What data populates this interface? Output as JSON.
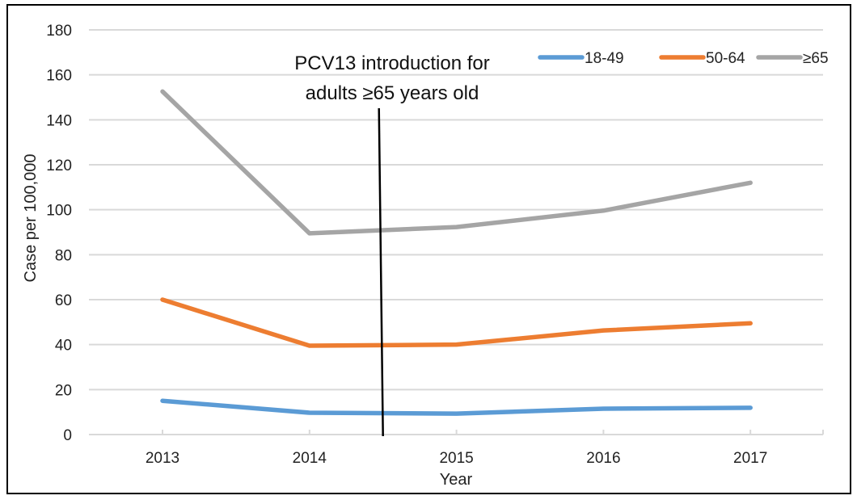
{
  "chart_data": {
    "type": "line",
    "title": "",
    "xlabel": "Year",
    "ylabel": "Case per 100,000",
    "categories": [
      "2013",
      "2014",
      "2015",
      "2016",
      "2017"
    ],
    "ylim": [
      0,
      180
    ],
    "yticks": [
      0,
      20,
      40,
      60,
      80,
      100,
      120,
      140,
      160,
      180
    ],
    "ytick_labels": [
      "0",
      "20",
      "40",
      "60",
      "80",
      "100",
      "120",
      "140",
      "160",
      "180"
    ],
    "grid": true,
    "legend_position": "top-right",
    "series": [
      {
        "name": "18-49",
        "color": "#5B9BD5",
        "values": [
          15.0,
          9.7,
          9.3,
          11.5,
          11.9
        ]
      },
      {
        "name": "50-64",
        "color": "#ED7D31",
        "values": [
          60.0,
          39.5,
          40.0,
          46.3,
          49.5
        ]
      },
      {
        "name": "≥65",
        "color": "#A5A5A5",
        "values": [
          152.6,
          89.5,
          92.3,
          99.6,
          112.0
        ]
      }
    ],
    "annotations": [
      {
        "text_lines": [
          "PCV13 introduction for",
          "adults ≥65 years old"
        ],
        "x_between": [
          "2014",
          "2015"
        ],
        "line_color": "#000000"
      }
    ],
    "gridline_color": "#D9D9D9"
  }
}
